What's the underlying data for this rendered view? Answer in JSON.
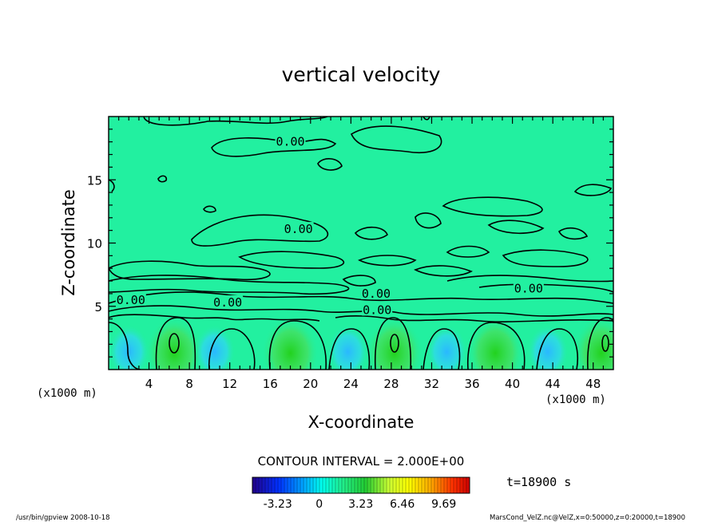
{
  "chart_data": {
    "type": "heatmap",
    "title": "vertical velocity",
    "xlabel": "X-coordinate",
    "ylabel": "Z-coordinate",
    "x_unit_left": "(x1000 m)",
    "x_unit_right": "(x1000 m)",
    "xlim": [
      0,
      50
    ],
    "ylim": [
      0,
      20
    ],
    "x_ticks": [
      4,
      8,
      12,
      16,
      20,
      24,
      28,
      32,
      36,
      40,
      44,
      48
    ],
    "y_ticks": [
      5,
      10,
      15
    ],
    "contour_interval_text": "CONTOUR INTERVAL = 2.000E+00",
    "contour_labels": [
      {
        "text": "0.00",
        "x": 18.0,
        "z": 18.0
      },
      {
        "text": "0.00",
        "x": 18.8,
        "z": 11.1
      },
      {
        "text": "0.00",
        "x": 2.2,
        "z": 5.5
      },
      {
        "text": "0.00",
        "x": 11.8,
        "z": 5.3
      },
      {
        "text": "0.00",
        "x": 26.5,
        "z": 6.0
      },
      {
        "text": "0.00",
        "x": 26.6,
        "z": 4.7
      },
      {
        "text": "0.00",
        "x": 41.6,
        "z": 6.4
      }
    ],
    "colorbar": {
      "ticks": [
        "-3.23",
        "0",
        "3.23",
        "6.46",
        "9.69"
      ],
      "tick_values": [
        -3.23,
        0,
        3.23,
        6.46,
        9.69
      ],
      "range": [
        -5.2,
        11.7
      ]
    },
    "time_label": "t=18900 s",
    "updraft_x_centers": [
      6.5,
      18.0,
      28.3,
      38.3,
      48.8
    ],
    "downdraft_x_centers": [
      2.0,
      10.5,
      23.7,
      33.5,
      43.5
    ]
  },
  "footer": {
    "left": "/usr/bin/gpview   2008-10-18",
    "right": "MarsCond_VelZ.nc@VelZ,x=0:50000,z=0:20000,t=18900"
  }
}
